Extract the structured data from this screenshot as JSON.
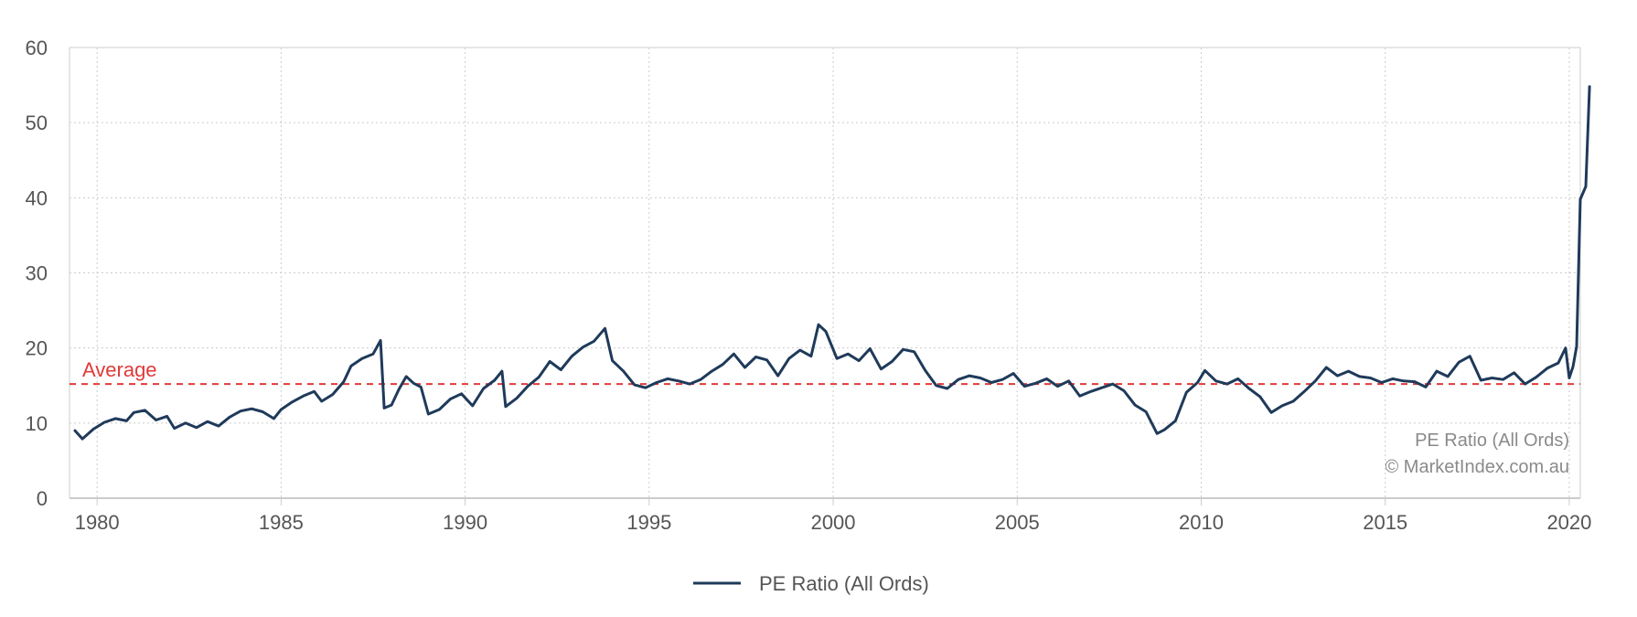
{
  "chart_data": {
    "type": "line",
    "title": "",
    "xlabel": "",
    "ylabel": "",
    "xlim": [
      1979.25,
      2020.3
    ],
    "ylim": [
      0,
      60
    ],
    "x_ticks": [
      1980,
      1985,
      1990,
      1995,
      2000,
      2005,
      2010,
      2015,
      2020
    ],
    "y_ticks": [
      0,
      10,
      20,
      30,
      40,
      50,
      60
    ],
    "x_tick_labels": [
      "1980",
      "1985",
      "1990",
      "1995",
      "2000",
      "2005",
      "2010",
      "2015",
      "2020"
    ],
    "y_tick_labels": [
      "0",
      "10",
      "20",
      "30",
      "40",
      "50",
      "60"
    ],
    "grid": true,
    "legend_position": "bottom-center",
    "colors": {
      "series": "#1f3a5a",
      "average": "#e03a3a",
      "grid": "#cccccc",
      "axis": "#cccccc"
    },
    "reference_line": {
      "label": "Average",
      "value": 15.2
    },
    "annotations": [
      "PE Ratio (All Ords)",
      "© MarketIndex.com.au"
    ],
    "series": [
      {
        "name": "PE Ratio (All Ords)",
        "points": [
          [
            1979.4,
            9.0
          ],
          [
            1979.6,
            7.9
          ],
          [
            1979.9,
            9.2
          ],
          [
            1980.2,
            10.1
          ],
          [
            1980.5,
            10.6
          ],
          [
            1980.8,
            10.3
          ],
          [
            1981.0,
            11.4
          ],
          [
            1981.3,
            11.7
          ],
          [
            1981.6,
            10.4
          ],
          [
            1981.9,
            10.9
          ],
          [
            1982.1,
            9.3
          ],
          [
            1982.4,
            10.0
          ],
          [
            1982.7,
            9.4
          ],
          [
            1983.0,
            10.2
          ],
          [
            1983.3,
            9.6
          ],
          [
            1983.6,
            10.8
          ],
          [
            1983.9,
            11.6
          ],
          [
            1984.2,
            11.9
          ],
          [
            1984.5,
            11.5
          ],
          [
            1984.8,
            10.6
          ],
          [
            1985.0,
            11.8
          ],
          [
            1985.3,
            12.8
          ],
          [
            1985.6,
            13.6
          ],
          [
            1985.9,
            14.2
          ],
          [
            1986.1,
            12.9
          ],
          [
            1986.4,
            13.8
          ],
          [
            1986.7,
            15.5
          ],
          [
            1986.9,
            17.6
          ],
          [
            1987.2,
            18.6
          ],
          [
            1987.5,
            19.2
          ],
          [
            1987.7,
            21.0
          ],
          [
            1987.8,
            12.0
          ],
          [
            1988.0,
            12.4
          ],
          [
            1988.2,
            14.5
          ],
          [
            1988.4,
            16.2
          ],
          [
            1988.6,
            15.3
          ],
          [
            1988.8,
            14.8
          ],
          [
            1989.0,
            11.2
          ],
          [
            1989.3,
            11.8
          ],
          [
            1989.6,
            13.2
          ],
          [
            1989.9,
            13.9
          ],
          [
            1990.2,
            12.3
          ],
          [
            1990.5,
            14.6
          ],
          [
            1990.8,
            15.7
          ],
          [
            1991.0,
            16.9
          ],
          [
            1991.1,
            12.2
          ],
          [
            1991.4,
            13.3
          ],
          [
            1991.7,
            14.9
          ],
          [
            1992.0,
            16.1
          ],
          [
            1992.3,
            18.2
          ],
          [
            1992.6,
            17.1
          ],
          [
            1992.9,
            18.9
          ],
          [
            1993.2,
            20.1
          ],
          [
            1993.5,
            20.9
          ],
          [
            1993.8,
            22.6
          ],
          [
            1994.0,
            18.3
          ],
          [
            1994.3,
            16.9
          ],
          [
            1994.6,
            15.1
          ],
          [
            1994.9,
            14.7
          ],
          [
            1995.2,
            15.4
          ],
          [
            1995.5,
            15.9
          ],
          [
            1995.8,
            15.6
          ],
          [
            1996.1,
            15.2
          ],
          [
            1996.4,
            15.8
          ],
          [
            1996.7,
            16.9
          ],
          [
            1997.0,
            17.8
          ],
          [
            1997.3,
            19.2
          ],
          [
            1997.6,
            17.4
          ],
          [
            1997.9,
            18.8
          ],
          [
            1998.2,
            18.4
          ],
          [
            1998.5,
            16.3
          ],
          [
            1998.8,
            18.6
          ],
          [
            1999.1,
            19.7
          ],
          [
            1999.4,
            18.9
          ],
          [
            1999.6,
            23.1
          ],
          [
            1999.8,
            22.2
          ],
          [
            2000.1,
            18.6
          ],
          [
            2000.4,
            19.2
          ],
          [
            2000.7,
            18.3
          ],
          [
            2001.0,
            19.9
          ],
          [
            2001.3,
            17.2
          ],
          [
            2001.6,
            18.2
          ],
          [
            2001.9,
            19.8
          ],
          [
            2002.2,
            19.5
          ],
          [
            2002.5,
            17.0
          ],
          [
            2002.8,
            15.0
          ],
          [
            2003.1,
            14.6
          ],
          [
            2003.4,
            15.8
          ],
          [
            2003.7,
            16.3
          ],
          [
            2004.0,
            16.0
          ],
          [
            2004.3,
            15.4
          ],
          [
            2004.6,
            15.8
          ],
          [
            2004.9,
            16.6
          ],
          [
            2005.2,
            14.9
          ],
          [
            2005.5,
            15.3
          ],
          [
            2005.8,
            15.9
          ],
          [
            2006.1,
            14.9
          ],
          [
            2006.4,
            15.6
          ],
          [
            2006.7,
            13.6
          ],
          [
            2007.0,
            14.2
          ],
          [
            2007.3,
            14.7
          ],
          [
            2007.6,
            15.2
          ],
          [
            2007.9,
            14.3
          ],
          [
            2008.2,
            12.4
          ],
          [
            2008.5,
            11.5
          ],
          [
            2008.8,
            8.6
          ],
          [
            2009.0,
            9.1
          ],
          [
            2009.3,
            10.3
          ],
          [
            2009.6,
            14.1
          ],
          [
            2009.9,
            15.4
          ],
          [
            2010.1,
            17.0
          ],
          [
            2010.4,
            15.6
          ],
          [
            2010.7,
            15.2
          ],
          [
            2011.0,
            15.9
          ],
          [
            2011.3,
            14.6
          ],
          [
            2011.6,
            13.5
          ],
          [
            2011.9,
            11.4
          ],
          [
            2012.2,
            12.3
          ],
          [
            2012.5,
            12.9
          ],
          [
            2012.8,
            14.2
          ],
          [
            2013.1,
            15.6
          ],
          [
            2013.4,
            17.4
          ],
          [
            2013.7,
            16.3
          ],
          [
            2014.0,
            16.9
          ],
          [
            2014.3,
            16.2
          ],
          [
            2014.6,
            16.0
          ],
          [
            2014.9,
            15.4
          ],
          [
            2015.2,
            15.9
          ],
          [
            2015.5,
            15.6
          ],
          [
            2015.8,
            15.5
          ],
          [
            2016.1,
            14.8
          ],
          [
            2016.4,
            16.9
          ],
          [
            2016.7,
            16.2
          ],
          [
            2017.0,
            18.1
          ],
          [
            2017.3,
            18.9
          ],
          [
            2017.6,
            15.7
          ],
          [
            2017.9,
            16.0
          ],
          [
            2018.2,
            15.8
          ],
          [
            2018.5,
            16.7
          ],
          [
            2018.8,
            15.2
          ],
          [
            2019.1,
            16.1
          ],
          [
            2019.4,
            17.3
          ],
          [
            2019.7,
            18.0
          ],
          [
            2019.9,
            20.0
          ],
          [
            2020.0,
            16.0
          ],
          [
            2020.1,
            17.5
          ],
          [
            2020.2,
            20.2
          ],
          [
            2020.3,
            39.8
          ],
          [
            2020.45,
            41.5
          ],
          [
            2020.55,
            54.8
          ]
        ]
      }
    ]
  }
}
